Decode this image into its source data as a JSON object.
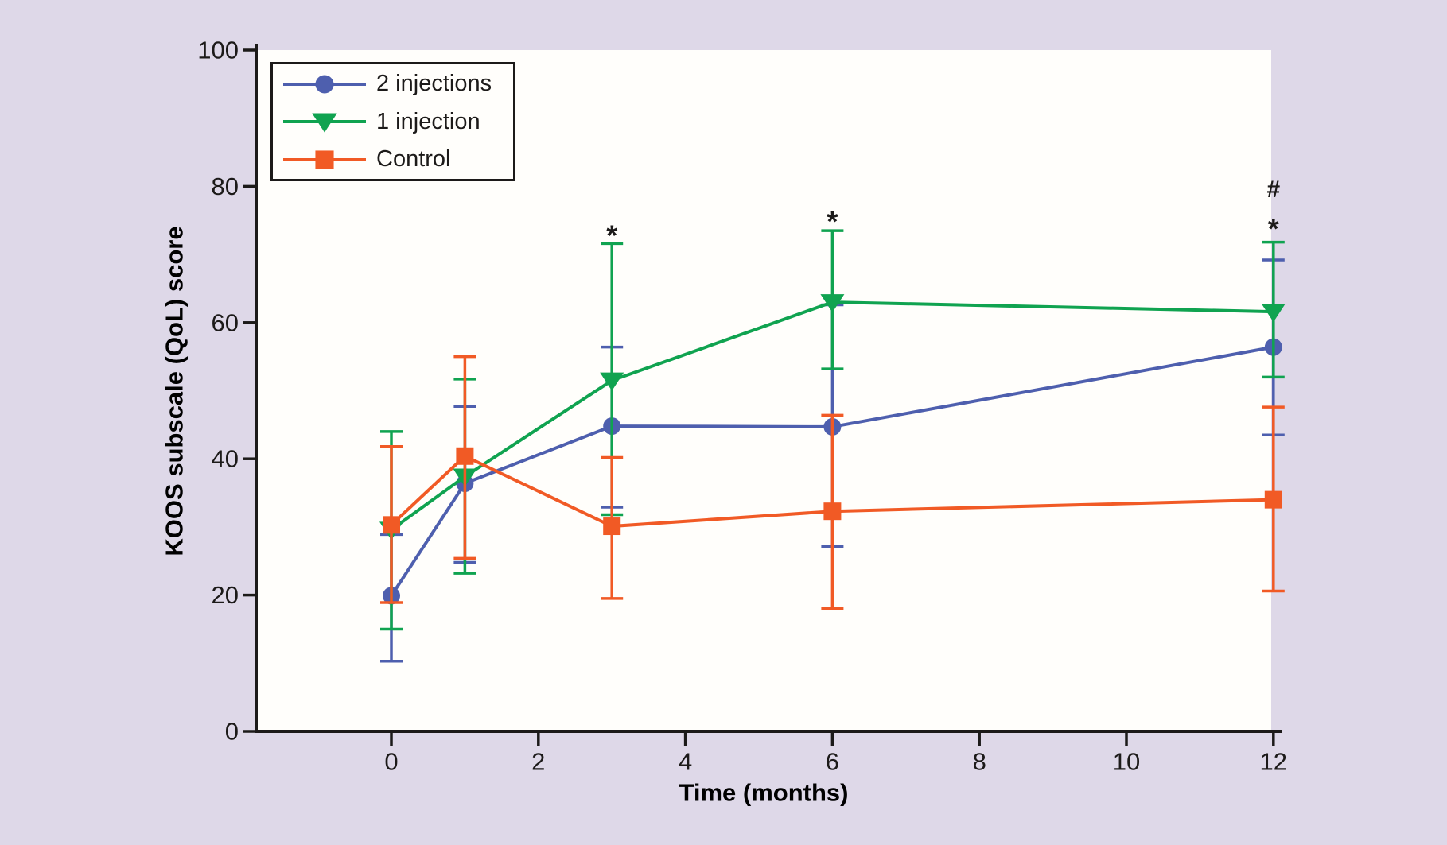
{
  "style": {
    "background": "#ded8e8",
    "plot_background": "#fffefb",
    "axis_color": "#1c1a19",
    "text_color": "#1c1a19"
  },
  "chart_data": {
    "type": "line",
    "title": "",
    "xlabel": "Time (months)",
    "ylabel": "KOOS subscale (QoL) score",
    "xlim": [
      -1.85,
      12
    ],
    "ylim": [
      0,
      100
    ],
    "x_ticks": [
      0,
      2,
      4,
      6,
      8,
      10,
      12
    ],
    "y_ticks": [
      0,
      20,
      40,
      60,
      80,
      100
    ],
    "grid": false,
    "legend_position": "top-left",
    "error_bars": true,
    "x": [
      0,
      1,
      3,
      6,
      12
    ],
    "series": [
      {
        "name": "2 injections",
        "color": "#4e5fae",
        "marker": "circle",
        "values": [
          19.9,
          36.4,
          44.8,
          44.7,
          56.4
        ],
        "err_low": [
          10.3,
          24.8,
          32.9,
          27.1,
          43.5
        ],
        "err_high": [
          28.9,
          47.7,
          56.4,
          62.6,
          69.2
        ]
      },
      {
        "name": "1 injection",
        "color": "#10a350",
        "marker": "triangle-down",
        "values": [
          29.6,
          37.4,
          51.5,
          63.0,
          61.6
        ],
        "err_low": [
          15.0,
          23.2,
          31.8,
          53.2,
          52.0
        ],
        "err_high": [
          44.0,
          51.7,
          71.6,
          73.5,
          71.8
        ]
      },
      {
        "name": "Control",
        "color": "#f15a25",
        "marker": "square",
        "values": [
          30.3,
          40.4,
          30.1,
          32.3,
          34.0
        ],
        "err_low": [
          18.9,
          25.4,
          19.5,
          18.0,
          20.6
        ],
        "err_high": [
          41.8,
          55.0,
          40.2,
          46.4,
          47.6
        ]
      }
    ],
    "annotations": [
      {
        "text": "*",
        "x": 3,
        "y": 74.0
      },
      {
        "text": "*",
        "x": 6,
        "y": 76.0
      },
      {
        "text": "#",
        "x": 12,
        "y": 79.5
      },
      {
        "text": "*",
        "x": 12,
        "y": 75.0
      }
    ]
  }
}
